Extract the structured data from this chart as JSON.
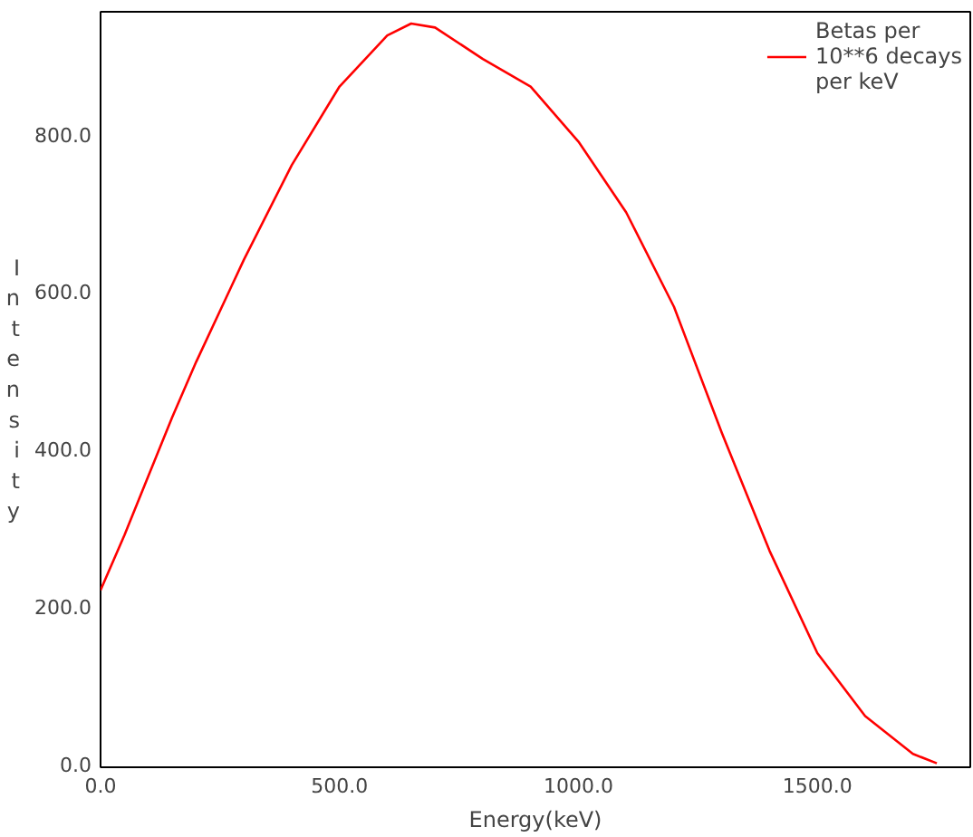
{
  "chart_data": {
    "type": "line",
    "xlabel": "Energy(keV)",
    "ylabel": "Intensity",
    "x": [
      0,
      50,
      100,
      150,
      200,
      300,
      400,
      500,
      600,
      650,
      700,
      800,
      900,
      1000,
      1100,
      1200,
      1300,
      1400,
      1500,
      1600,
      1700,
      1750
    ],
    "series": [
      {
        "name": "Betas per 10**6 decays per keV",
        "color": "#ff0000",
        "values": [
          220,
          290,
          365,
          440,
          510,
          640,
          760,
          860,
          925,
          940,
          935,
          895,
          860,
          790,
          700,
          580,
          420,
          270,
          140,
          60,
          12,
          0
        ]
      }
    ],
    "xlim": [
      0,
      1820
    ],
    "ylim": [
      -5,
      955
    ],
    "xticks": [
      {
        "value": 0,
        "label": "0.0"
      },
      {
        "value": 500,
        "label": "500.0"
      },
      {
        "value": 1000,
        "label": "1000.0"
      },
      {
        "value": 1500,
        "label": "1500.0"
      }
    ],
    "yticks": [
      {
        "value": 0,
        "label": "0.0"
      },
      {
        "value": 200,
        "label": "200.0"
      },
      {
        "value": 400,
        "label": "400.0"
      },
      {
        "value": 600,
        "label": "600.0"
      },
      {
        "value": 800,
        "label": "800.0"
      }
    ],
    "grid": false,
    "legend": "top right",
    "line_style": "solid",
    "marker": "none"
  }
}
